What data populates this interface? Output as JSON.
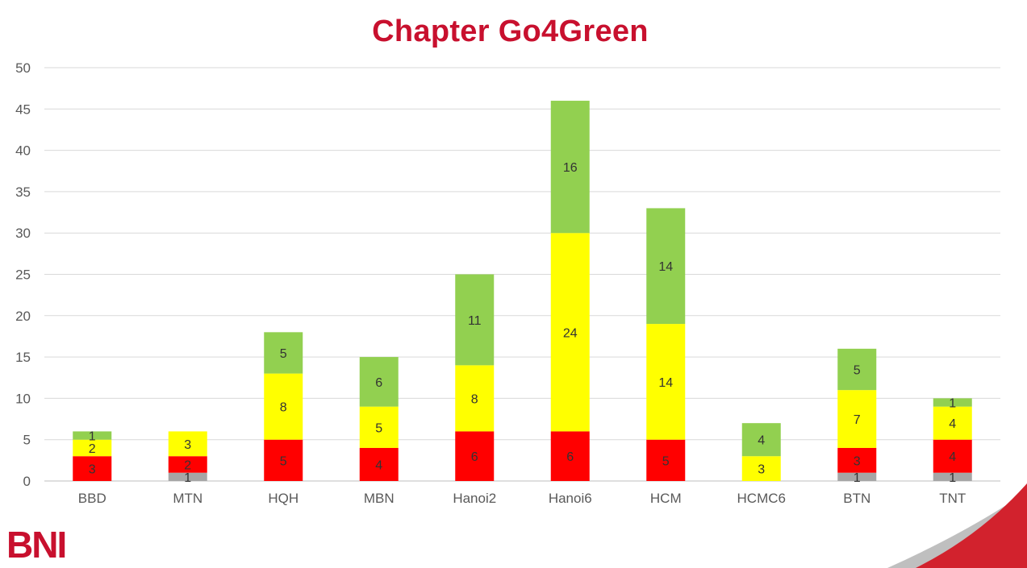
{
  "title": "Chapter Go4Green",
  "logo": {
    "text": "BNI"
  },
  "chart_data": {
    "type": "bar",
    "stacked": true,
    "categories": [
      "BBD",
      "MTN",
      "HQH",
      "MBN",
      "Hanoi2",
      "Hanoi6",
      "HCM",
      "HCMC6",
      "BTN",
      "TNT"
    ],
    "series": [
      {
        "color": "#a6a6a6",
        "values": [
          0,
          1,
          0,
          0,
          0,
          0,
          0,
          0,
          1,
          1
        ]
      },
      {
        "color": "#ff0000",
        "values": [
          3,
          2,
          5,
          4,
          6,
          6,
          5,
          0,
          3,
          4
        ]
      },
      {
        "color": "#ffff00",
        "values": [
          2,
          3,
          8,
          5,
          8,
          24,
          14,
          3,
          7,
          4
        ]
      },
      {
        "color": "#92d050",
        "values": [
          1,
          0,
          5,
          6,
          11,
          16,
          14,
          4,
          5,
          1
        ]
      }
    ],
    "ylim": [
      0,
      50
    ],
    "yticks": [
      "0",
      "5",
      "10",
      "15",
      "20",
      "25",
      "30",
      "35",
      "40",
      "45",
      "50"
    ],
    "grid": true,
    "legend": "none",
    "xlabel": "",
    "ylabel": ""
  }
}
